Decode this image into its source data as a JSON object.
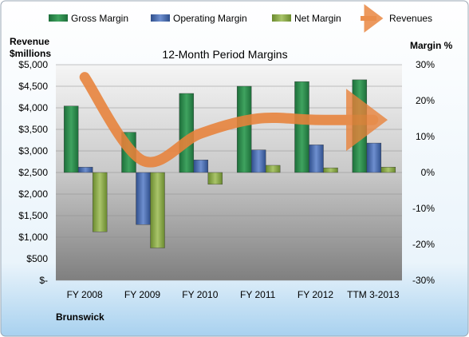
{
  "chart_data": {
    "type": "bar",
    "title": "12-Month Period Margins",
    "company": "Brunswick",
    "y_left_label_line1": "Revenue",
    "y_left_label_line2": "$millions",
    "y_right_label": "Margin %",
    "categories": [
      "FY 2008",
      "FY 2009",
      "FY 2010",
      "FY 2011",
      "FY 2012",
      "TTM 3-2013"
    ],
    "y_left_ticks": [
      "$5,000",
      "$4,500",
      "$4,000",
      "$3,500",
      "$3,000",
      "$2,500",
      "$2,000",
      "$1,500",
      "$1,000",
      "$500",
      "$-"
    ],
    "y_right_ticks": [
      "30%",
      "20%",
      "10%",
      "0%",
      "-10%",
      "-20%",
      "-30%"
    ],
    "ylim_left": [
      0,
      5000
    ],
    "ylim_right": [
      -30,
      30
    ],
    "grid": true,
    "legend_position": "top",
    "series": [
      {
        "name": "Gross Margin",
        "kind": "bar",
        "axis": "right",
        "color": "#2e8b4f",
        "values": [
          18.5,
          11.2,
          22.0,
          24.0,
          25.3,
          25.8
        ]
      },
      {
        "name": "Operating Margin",
        "kind": "bar",
        "axis": "right",
        "color": "#4f6fb0",
        "values": [
          1.5,
          -14.5,
          3.5,
          6.3,
          7.7,
          8.2
        ]
      },
      {
        "name": "Net Margin",
        "kind": "bar",
        "axis": "right",
        "color": "#8aa64a",
        "values": [
          -16.5,
          -21.0,
          -3.3,
          2.0,
          1.3,
          1.5
        ]
      },
      {
        "name": "Revenues",
        "kind": "line",
        "axis": "left",
        "color": "#e8823a",
        "values": [
          4710,
          2780,
          3400,
          3750,
          3720,
          3720
        ]
      }
    ]
  }
}
